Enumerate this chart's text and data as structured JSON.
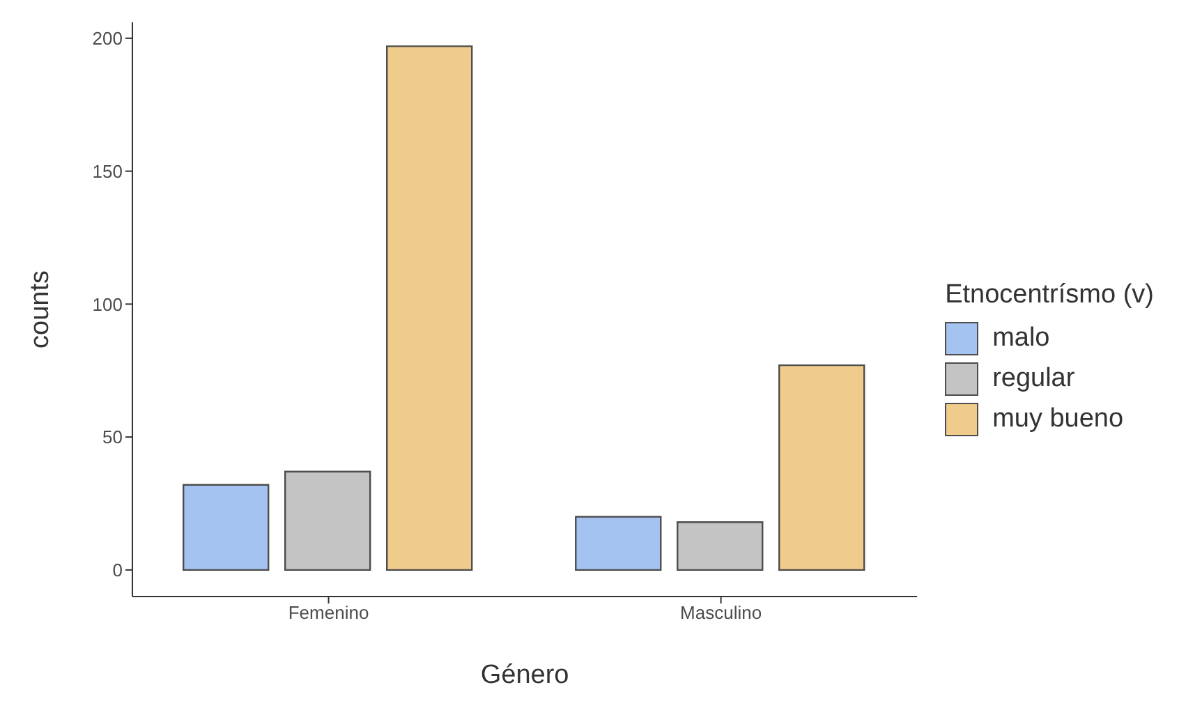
{
  "chart_data": {
    "type": "bar",
    "xlabel": "Género",
    "ylabel": "counts",
    "legend_title": "Etnocentrísmo (v)",
    "categories": [
      "Femenino",
      "Masculino"
    ],
    "series": [
      {
        "name": "malo",
        "color": "#a4c3f0",
        "values": [
          32,
          20
        ]
      },
      {
        "name": "regular",
        "color": "#c4c4c4",
        "values": [
          37,
          18
        ]
      },
      {
        "name": "muy bueno",
        "color": "#f0cc8c",
        "values": [
          197,
          77
        ]
      }
    ],
    "ylim": [
      -10,
      206
    ],
    "yticks": [
      0,
      50,
      100,
      150,
      200
    ],
    "grid": false,
    "legend": "right"
  }
}
